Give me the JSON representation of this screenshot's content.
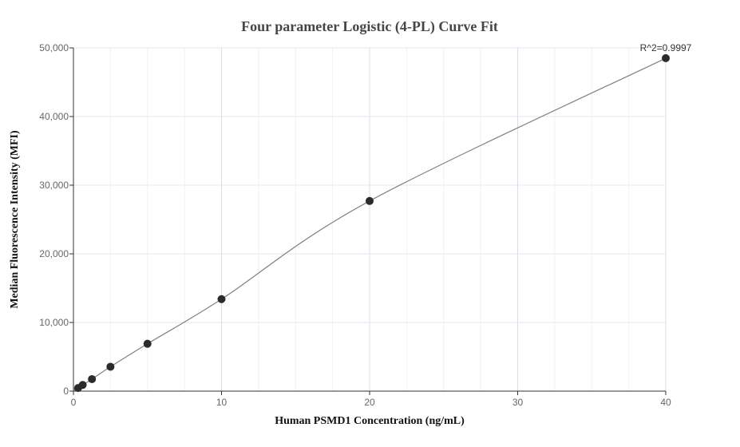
{
  "chart_data": {
    "type": "scatter",
    "title": "Four parameter Logistic (4-PL) Curve Fit",
    "xlabel": "Human PSMD1 Concentration (ng/mL)",
    "ylabel": "Median Fluorescence Intensity (MFI)",
    "xlim": [
      0,
      40
    ],
    "ylim": [
      0,
      50000
    ],
    "x_ticks": [
      0,
      10,
      20,
      30,
      40
    ],
    "y_ticks": [
      0,
      10000,
      20000,
      30000,
      40000,
      50000
    ],
    "x_tick_labels": [
      "0",
      "10",
      "20",
      "30",
      "40"
    ],
    "y_tick_labels": [
      "0",
      "10,000",
      "20,000",
      "30,000",
      "40,000",
      "50,000"
    ],
    "grid": true,
    "annotation": "R^2=0.9997",
    "colors": {
      "points": "#2b2b2b",
      "curve": "#808080",
      "grid": "#e6e6ef"
    },
    "points": [
      {
        "x": 0.3125,
        "y": 450
      },
      {
        "x": 0.625,
        "y": 900
      },
      {
        "x": 1.25,
        "y": 1750
      },
      {
        "x": 2.5,
        "y": 3550
      },
      {
        "x": 5,
        "y": 6900
      },
      {
        "x": 10,
        "y": 13400
      },
      {
        "x": 20,
        "y": 27700
      },
      {
        "x": 40,
        "y": 48500
      }
    ]
  }
}
